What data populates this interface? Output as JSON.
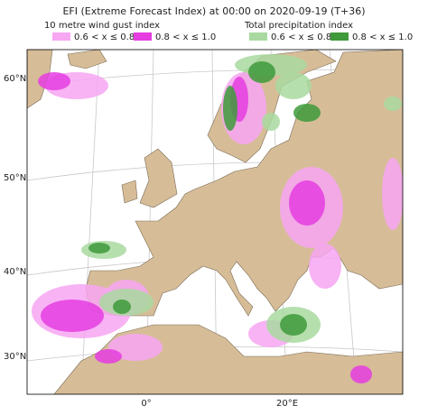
{
  "title": "EFI (Extreme Forecast Index) at 00:00 on 2020-09-19 (T+36)",
  "legend": [
    {
      "title": "10 metre wind gust index",
      "items": [
        {
          "label": "0.6 < x ≤ 0.8",
          "color": "#f7a6f2"
        },
        {
          "label": "0.8 < x ≤ 1.0",
          "color": "#e53de0"
        }
      ]
    },
    {
      "title": "Total precipitation index",
      "items": [
        {
          "label": "0.6 < x ≤ 0.8",
          "color": "#a9d9a0"
        },
        {
          "label": "0.8 < x ≤ 1.0",
          "color": "#3e9a3b"
        }
      ]
    }
  ],
  "lat_labels": [
    "60°N",
    "50°N",
    "40°N",
    "30°N"
  ],
  "lon_labels": [
    "0°",
    "20°E"
  ]
}
